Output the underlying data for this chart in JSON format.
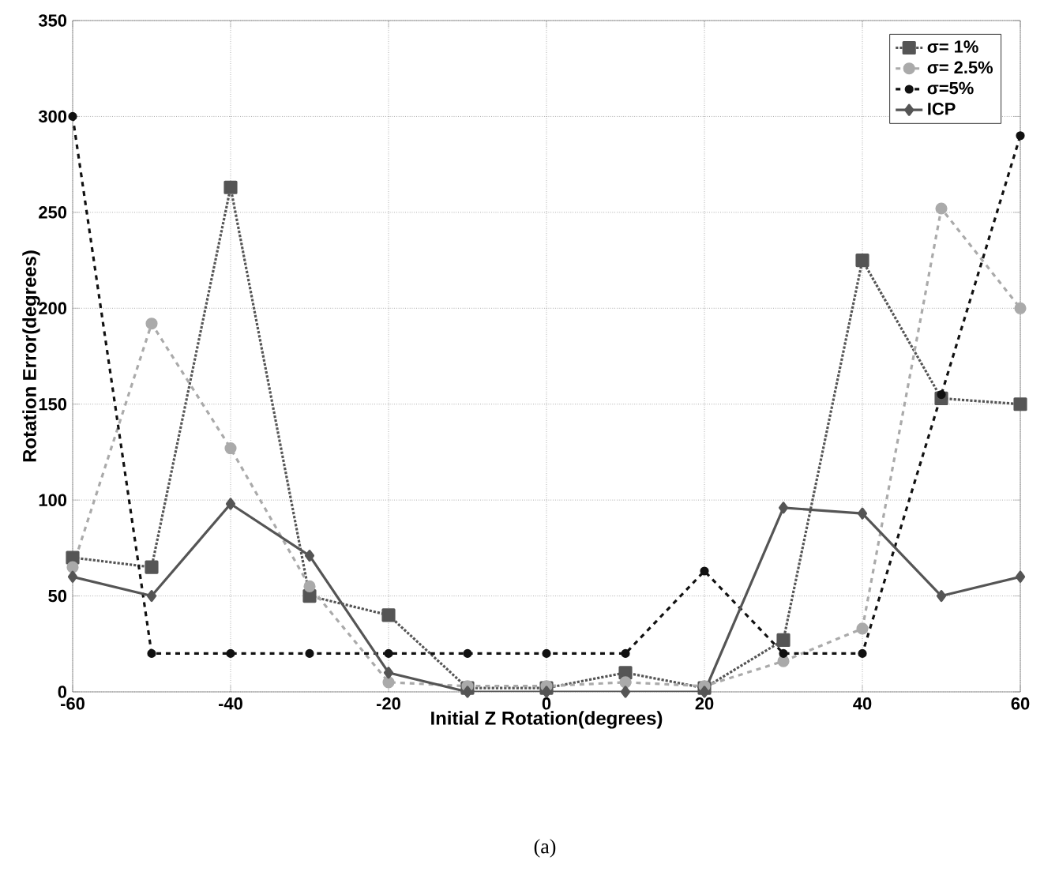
{
  "chart_data": {
    "type": "line",
    "xlabel": "Initial Z Rotation(degrees)",
    "ylabel": "Rotation Error(degrees)",
    "x": [
      -60,
      -50,
      -40,
      -30,
      -20,
      -10,
      0,
      10,
      20,
      30,
      40,
      50,
      60
    ],
    "series": [
      {
        "name": "σ= 1%",
        "color": "#555555",
        "marker": "square",
        "line_style": "dotted",
        "values": [
          70,
          65,
          263,
          50,
          40,
          2,
          2,
          10,
          2,
          27,
          225,
          153,
          150
        ]
      },
      {
        "name": "σ= 2.5%",
        "color": "#aaaaaa",
        "marker": "circle",
        "line_style": "dashed",
        "values": [
          65,
          192,
          127,
          55,
          5,
          3,
          3,
          5,
          3,
          16,
          33,
          252,
          200
        ]
      },
      {
        "name": "σ=5%",
        "color": "#111111",
        "marker": "circle",
        "line_style": "dashed",
        "values": [
          300,
          20,
          20,
          20,
          20,
          20,
          20,
          20,
          63,
          20,
          20,
          155,
          290
        ]
      },
      {
        "name": "ICP",
        "color": "#555555",
        "marker": "diamond",
        "line_style": "solid",
        "values": [
          60,
          50,
          98,
          71,
          10,
          0,
          0,
          0,
          0,
          96,
          93,
          50,
          60
        ]
      }
    ],
    "xlim": [
      -60,
      60
    ],
    "xticks": [
      -60,
      -40,
      -20,
      0,
      20,
      40,
      60
    ],
    "ylim": [
      0,
      350
    ],
    "yticks": [
      0,
      50,
      100,
      150,
      200,
      250,
      300,
      350
    ],
    "grid": true,
    "legend": "top right",
    "annotations": [
      "(a)"
    ]
  }
}
